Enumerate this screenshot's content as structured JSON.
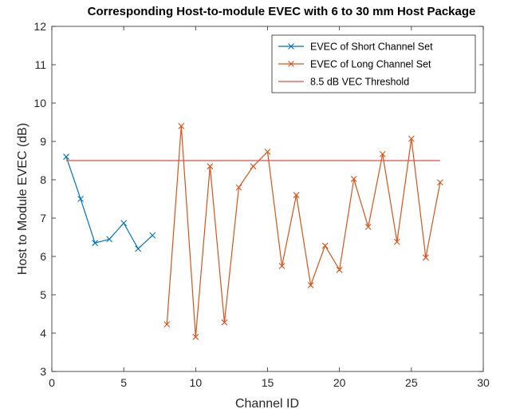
{
  "chart_data": {
    "type": "line",
    "title": "Corresponding Host-to-module EVEC with 6 to 30 mm Host Package",
    "xlabel": "Channel ID",
    "ylabel": "Host to Module EVEC (dB)",
    "xlim": [
      0,
      30
    ],
    "ylim": [
      3,
      12
    ],
    "xticks": [
      0,
      5,
      10,
      15,
      20,
      25,
      30
    ],
    "yticks": [
      3,
      4,
      5,
      6,
      7,
      8,
      9,
      10,
      11,
      12
    ],
    "grid": false,
    "legend_location": "top-right",
    "series": [
      {
        "name": "EVEC of Short Channel Set",
        "color": "#0072BD",
        "marker": "x",
        "x": [
          1,
          2,
          3,
          4,
          5,
          6,
          7
        ],
        "y": [
          8.6,
          7.5,
          6.35,
          6.45,
          6.87,
          6.2,
          6.55
        ]
      },
      {
        "name": "EVEC of Long Channel Set",
        "color": "#D95319",
        "marker": "x",
        "x": [
          8,
          9,
          10,
          11,
          12,
          13,
          14,
          15,
          16,
          17,
          18,
          19,
          20,
          21,
          22,
          23,
          24,
          25,
          26,
          27
        ],
        "y": [
          4.23,
          9.4,
          3.9,
          8.35,
          4.28,
          7.8,
          8.35,
          8.73,
          5.75,
          7.6,
          5.25,
          6.28,
          5.65,
          8.02,
          6.77,
          8.67,
          6.38,
          9.07,
          5.97,
          7.93
        ]
      },
      {
        "name": "8.5 dB VEC Threshold",
        "color": "#E84A4A",
        "marker": "none",
        "x": [
          1,
          27
        ],
        "y": [
          8.5,
          8.5
        ]
      }
    ]
  }
}
